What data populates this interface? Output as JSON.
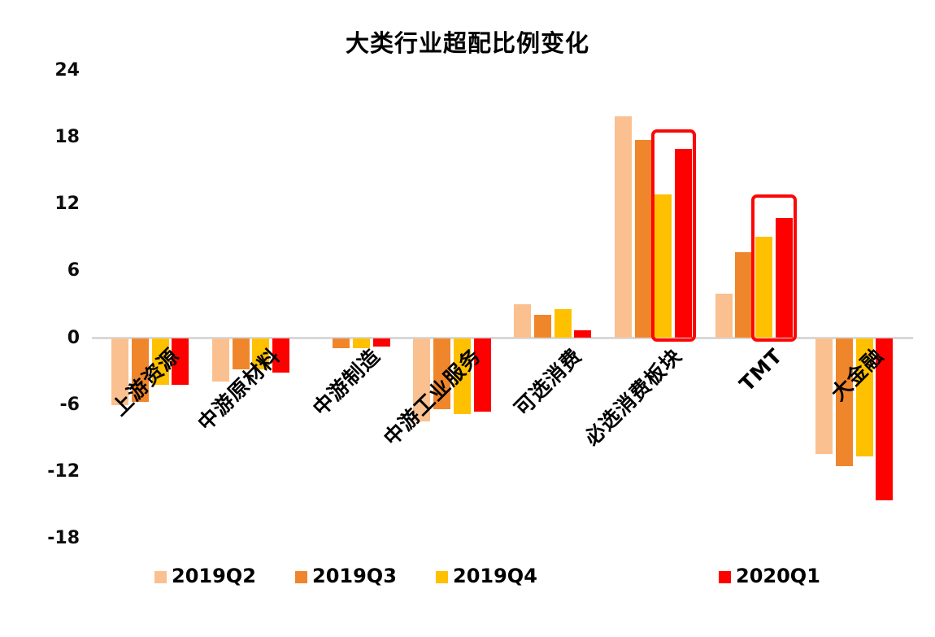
{
  "chart_data": {
    "type": "bar",
    "title": "大类行业超配比例变化",
    "categories": [
      "上游资源",
      "中游原材料",
      "中游制造",
      "中游工业服务",
      "可选消费",
      "必选消费板块",
      "TMT",
      "大金融"
    ],
    "series": [
      {
        "name": "2019Q2",
        "color": "#FAC090",
        "values": [
          -6.0,
          -3.9,
          0,
          -7.5,
          3.0,
          19.9,
          4.0,
          -10.4
        ]
      },
      {
        "name": "2019Q3",
        "color": "#F0862B",
        "values": [
          -5.7,
          -2.8,
          -0.9,
          -6.4,
          2.1,
          17.8,
          7.7,
          -11.5
        ]
      },
      {
        "name": "2019Q4",
        "color": "#FFC000",
        "values": [
          -4.2,
          -2.8,
          -0.9,
          -6.8,
          2.6,
          12.9,
          9.1,
          -10.6
        ]
      },
      {
        "name": "2020Q1",
        "color": "#FE0000",
        "values": [
          -4.2,
          -3.1,
          -0.8,
          -6.6,
          0.7,
          17.0,
          10.8,
          -14.6
        ]
      }
    ],
    "yticks": [
      24,
      18,
      12,
      6,
      0,
      -6,
      -12,
      -18
    ],
    "ylim": [
      -18,
      24
    ],
    "grid": false,
    "legend_position": "bottom",
    "axis_line_color": "#D8D8D8",
    "highlight_color": "#FB0707",
    "annotations": [
      {
        "type": "box",
        "category_index": 5,
        "series_span": [
          2,
          3
        ],
        "top_value": 18.7,
        "note": "red highlight box around 2019Q4 and 2020Q1 bars of 必选消费板块"
      },
      {
        "type": "box",
        "category_index": 6,
        "series_span": [
          2,
          3
        ],
        "top_value": 12.9,
        "note": "red highlight box around 2019Q4 and 2020Q1 bars of TMT"
      }
    ]
  }
}
